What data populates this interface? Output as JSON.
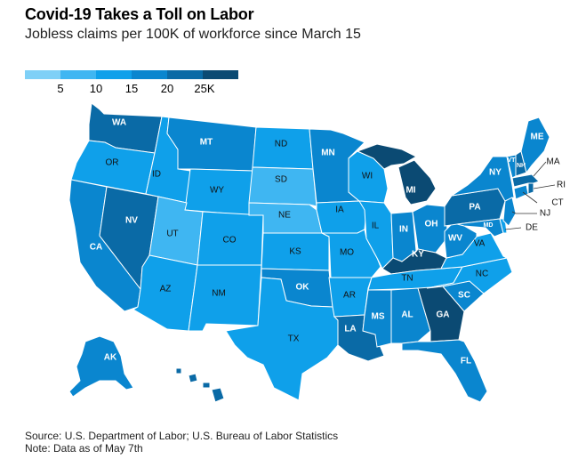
{
  "header": {
    "title": "Covid-19 Takes a Toll on Labor",
    "subtitle": "Jobless claims per 100K of workforce since March 15"
  },
  "legend": {
    "colors": [
      "#7fd0f7",
      "#3fb6f2",
      "#0fa0ea",
      "#0a86cf",
      "#0a6aa6",
      "#0b4a73"
    ],
    "labels": [
      "5",
      "10",
      "15",
      "20",
      "25K"
    ]
  },
  "map": {
    "states": {
      "WA": {
        "label": "WA",
        "color": "#0a6aa6"
      },
      "OR": {
        "label": "OR",
        "color": "#0fa0ea"
      },
      "CA": {
        "label": "CA",
        "color": "#0a86cf"
      },
      "NV": {
        "label": "NV",
        "color": "#0a6aa6"
      },
      "ID": {
        "label": "ID",
        "color": "#0fa0ea"
      },
      "MT": {
        "label": "MT",
        "color": "#0a86cf"
      },
      "WY": {
        "label": "WY",
        "color": "#0fa0ea"
      },
      "UT": {
        "label": "UT",
        "color": "#3fb6f2"
      },
      "AZ": {
        "label": "AZ",
        "color": "#0fa0ea"
      },
      "CO": {
        "label": "CO",
        "color": "#0fa0ea"
      },
      "NM": {
        "label": "NM",
        "color": "#0fa0ea"
      },
      "ND": {
        "label": "ND",
        "color": "#0fa0ea"
      },
      "SD": {
        "label": "SD",
        "color": "#3fb6f2"
      },
      "NE": {
        "label": "NE",
        "color": "#3fb6f2"
      },
      "KS": {
        "label": "KS",
        "color": "#0fa0ea"
      },
      "OK": {
        "label": "OK",
        "color": "#0a86cf"
      },
      "TX": {
        "label": "TX",
        "color": "#0fa0ea"
      },
      "MN": {
        "label": "MN",
        "color": "#0a86cf"
      },
      "IA": {
        "label": "IA",
        "color": "#0fa0ea"
      },
      "MO": {
        "label": "MO",
        "color": "#0fa0ea"
      },
      "AR": {
        "label": "AR",
        "color": "#0fa0ea"
      },
      "LA": {
        "label": "LA",
        "color": "#0a6aa6"
      },
      "WI": {
        "label": "WI",
        "color": "#0fa0ea"
      },
      "IL": {
        "label": "IL",
        "color": "#0fa0ea"
      },
      "MS": {
        "label": "MS",
        "color": "#0a86cf"
      },
      "MI": {
        "label": "MI",
        "color": "#0b4a73"
      },
      "IN": {
        "label": "IN",
        "color": "#0a86cf"
      },
      "OH": {
        "label": "OH",
        "color": "#0a86cf"
      },
      "KY": {
        "label": "KY",
        "color": "#0b4a73"
      },
      "TN": {
        "label": "TN",
        "color": "#0fa0ea"
      },
      "AL": {
        "label": "AL",
        "color": "#0a86cf"
      },
      "GA": {
        "label": "GA",
        "color": "#0b4a73"
      },
      "FL": {
        "label": "FL",
        "color": "#0a86cf"
      },
      "SC": {
        "label": "SC",
        "color": "#0a86cf"
      },
      "NC": {
        "label": "NC",
        "color": "#0fa0ea"
      },
      "VA": {
        "label": "VA",
        "color": "#0fa0ea"
      },
      "WV": {
        "label": "WV",
        "color": "#0a86cf"
      },
      "PA": {
        "label": "PA",
        "color": "#0a6aa6"
      },
      "NY": {
        "label": "NY",
        "color": "#0a86cf"
      },
      "VT": {
        "label": "VT",
        "color": "#0a86cf"
      },
      "NH": {
        "label": "NH",
        "color": "#0a6aa6"
      },
      "ME": {
        "label": "ME",
        "color": "#0a86cf"
      },
      "MA": {
        "label": "MA",
        "color": "#0a6aa6"
      },
      "RI": {
        "label": "RI",
        "color": "#0a6aa6"
      },
      "CT": {
        "label": "CT",
        "color": "#0a86cf"
      },
      "NJ": {
        "label": "NJ",
        "color": "#0a86cf"
      },
      "DE": {
        "label": "DE",
        "color": "#0fa0ea"
      },
      "MD": {
        "label": "MD",
        "color": "#0a86cf"
      },
      "AK": {
        "label": "AK",
        "color": "#0a86cf"
      },
      "HI": {
        "label": "HI",
        "color": "#0a6aa6"
      }
    }
  },
  "footer": {
    "source": "Source: U.S. Department of Labor; U.S. Bureau of Labor Statistics",
    "note": "Note: Data as of May 7th"
  }
}
